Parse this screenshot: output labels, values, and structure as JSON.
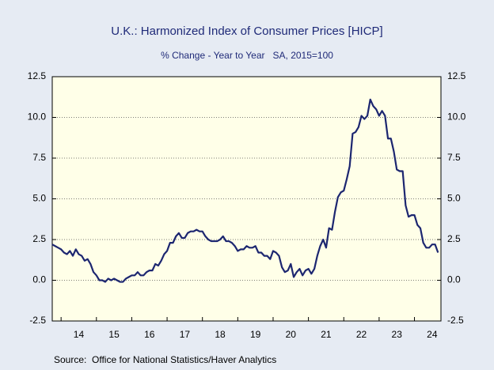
{
  "chart_data": {
    "type": "line",
    "title": "U.K.: Harmonized Index of Consumer Prices [HICP]",
    "subtitle": "% Change - Year to Year   SA, 2015=100",
    "source": "Source:  Office for National Statistics/Haver Analytics",
    "x": [
      2013.75,
      2013.833,
      2013.917,
      2014,
      2014.083,
      2014.167,
      2014.25,
      2014.333,
      2014.417,
      2014.5,
      2014.583,
      2014.667,
      2014.75,
      2014.833,
      2014.917,
      2015,
      2015.083,
      2015.167,
      2015.25,
      2015.333,
      2015.417,
      2015.5,
      2015.583,
      2015.667,
      2015.75,
      2015.833,
      2015.917,
      2016,
      2016.083,
      2016.167,
      2016.25,
      2016.333,
      2016.417,
      2016.5,
      2016.583,
      2016.667,
      2016.75,
      2016.833,
      2016.917,
      2017,
      2017.083,
      2017.167,
      2017.25,
      2017.333,
      2017.417,
      2017.5,
      2017.583,
      2017.667,
      2017.75,
      2017.833,
      2017.917,
      2018,
      2018.083,
      2018.167,
      2018.25,
      2018.333,
      2018.417,
      2018.5,
      2018.583,
      2018.667,
      2018.75,
      2018.833,
      2018.917,
      2019,
      2019.083,
      2019.167,
      2019.25,
      2019.333,
      2019.417,
      2019.5,
      2019.583,
      2019.667,
      2019.75,
      2019.833,
      2019.917,
      2020,
      2020.083,
      2020.167,
      2020.25,
      2020.333,
      2020.417,
      2020.5,
      2020.583,
      2020.667,
      2020.75,
      2020.833,
      2020.917,
      2021,
      2021.083,
      2021.167,
      2021.25,
      2021.333,
      2021.417,
      2021.5,
      2021.583,
      2021.667,
      2021.75,
      2021.833,
      2021.917,
      2022,
      2022.083,
      2022.167,
      2022.25,
      2022.333,
      2022.417,
      2022.5,
      2022.583,
      2022.667,
      2022.75,
      2022.833,
      2022.917,
      2023,
      2023.083,
      2023.167,
      2023.25,
      2023.333,
      2023.417,
      2023.5,
      2023.583,
      2023.667,
      2023.75,
      2023.833,
      2023.917,
      2024,
      2024.083,
      2024.167,
      2024.25,
      2024.333,
      2024.417,
      2024.5,
      2024.583,
      2024.667
    ],
    "series": [
      {
        "name": "HICP",
        "color": "#1c2670",
        "values": [
          2.2,
          2.1,
          2.0,
          1.9,
          1.7,
          1.6,
          1.8,
          1.5,
          1.9,
          1.6,
          1.5,
          1.2,
          1.3,
          1.0,
          0.5,
          0.3,
          0.0,
          0.0,
          -0.1,
          0.1,
          0.0,
          0.1,
          0.0,
          -0.1,
          -0.1,
          0.1,
          0.2,
          0.3,
          0.3,
          0.5,
          0.3,
          0.3,
          0.5,
          0.6,
          0.6,
          1.0,
          0.9,
          1.2,
          1.6,
          1.8,
          2.3,
          2.3,
          2.7,
          2.9,
          2.6,
          2.6,
          2.9,
          3.0,
          3.0,
          3.1,
          3.0,
          3.0,
          2.7,
          2.5,
          2.4,
          2.4,
          2.4,
          2.5,
          2.7,
          2.4,
          2.4,
          2.3,
          2.1,
          1.8,
          1.9,
          1.9,
          2.1,
          2.0,
          2.0,
          2.1,
          1.7,
          1.7,
          1.5,
          1.5,
          1.3,
          1.8,
          1.7,
          1.5,
          0.8,
          0.5,
          0.6,
          1.0,
          0.2,
          0.5,
          0.7,
          0.3,
          0.6,
          0.7,
          0.4,
          0.7,
          1.5,
          2.1,
          2.5,
          2.0,
          3.2,
          3.1,
          4.2,
          5.1,
          5.4,
          5.5,
          6.2,
          7.0,
          9.0,
          9.1,
          9.4,
          10.1,
          9.9,
          10.1,
          11.1,
          10.7,
          10.5,
          10.1,
          10.4,
          10.1,
          8.7,
          8.7,
          7.9,
          6.8,
          6.7,
          6.7,
          4.6,
          3.9,
          4.0,
          4.0,
          3.4,
          3.2,
          2.3,
          2.0,
          2.0,
          2.2,
          2.2,
          1.7
        ]
      }
    ],
    "xlim": [
      2013.75,
      2024.75
    ],
    "xticks": [
      {
        "value": 2014,
        "label": "14"
      },
      {
        "value": 2015,
        "label": "15"
      },
      {
        "value": 2016,
        "label": "16"
      },
      {
        "value": 2017,
        "label": "17"
      },
      {
        "value": 2018,
        "label": "18"
      },
      {
        "value": 2019,
        "label": "19"
      },
      {
        "value": 2020,
        "label": "20"
      },
      {
        "value": 2021,
        "label": "21"
      },
      {
        "value": 2022,
        "label": "22"
      },
      {
        "value": 2023,
        "label": "23"
      },
      {
        "value": 2024,
        "label": "24"
      }
    ],
    "ylim": [
      -2.5,
      12.5
    ],
    "yticks": [
      -2.5,
      {
        "value": 0,
        "label": "0.0"
      },
      2.5,
      {
        "value": 5,
        "label": "5.0"
      },
      7.5,
      {
        "value": 10,
        "label": "10.0"
      },
      12.5
    ],
    "y2lim": [
      -2.5,
      12.5
    ],
    "y2ticks": [
      -2.5,
      {
        "value": 0,
        "label": "0.0"
      },
      2.5,
      {
        "value": 5,
        "label": "5.0"
      },
      7.5,
      {
        "value": 10,
        "label": "10.0"
      },
      12.5
    ],
    "grid": true
  }
}
